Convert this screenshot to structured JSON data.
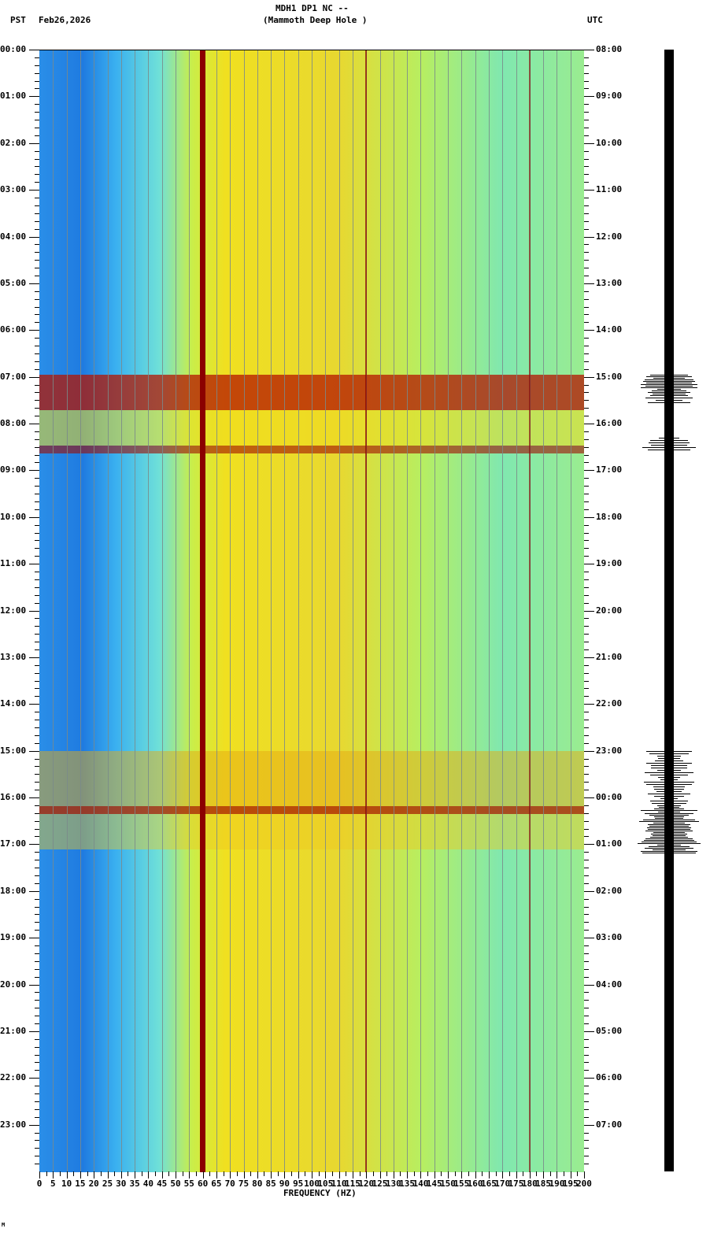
{
  "header": {
    "title_line1": "MDH1 DP1 NC --",
    "title_line2": "(Mammoth Deep Hole )",
    "left_tz": "PST",
    "date": "Feb26,2026",
    "right_tz": "UTC"
  },
  "footer": {
    "xlabel": "FREQUENCY (HZ)",
    "logo_mark": "M"
  },
  "colors": {
    "background_low": "#1f7be0",
    "mid": "#6fe0d8",
    "high": "#f0e020",
    "peak": "#8b0000",
    "gridline": "#7a8a8a",
    "seismogram": "#000000"
  },
  "chart_data": {
    "type": "heatmap",
    "title": "MDH1 DP1 NC -- (Mammoth Deep Hole )",
    "subtitle": "Feb26,2026",
    "xlabel": "FREQUENCY (HZ)",
    "ylabel_left": "PST",
    "ylabel_right": "UTC",
    "xlim": [
      0,
      200
    ],
    "x_ticks": [
      0,
      5,
      10,
      15,
      20,
      25,
      30,
      35,
      40,
      45,
      50,
      55,
      60,
      65,
      70,
      75,
      80,
      85,
      90,
      95,
      100,
      105,
      110,
      115,
      120,
      125,
      130,
      135,
      140,
      145,
      150,
      155,
      160,
      165,
      170,
      175,
      180,
      185,
      190,
      195,
      200
    ],
    "y_ticks_left": [
      "00:00",
      "01:00",
      "02:00",
      "03:00",
      "04:00",
      "05:00",
      "06:00",
      "07:00",
      "08:00",
      "09:00",
      "10:00",
      "11:00",
      "12:00",
      "13:00",
      "14:00",
      "15:00",
      "16:00",
      "17:00",
      "18:00",
      "19:00",
      "20:00",
      "21:00",
      "22:00",
      "23:00"
    ],
    "y_ticks_right": [
      "08:00",
      "09:00",
      "10:00",
      "11:00",
      "12:00",
      "13:00",
      "14:00",
      "15:00",
      "16:00",
      "17:00",
      "18:00",
      "19:00",
      "20:00",
      "21:00",
      "22:00",
      "23:00",
      "00:00",
      "01:00",
      "02:00",
      "03:00",
      "04:00",
      "05:00",
      "06:00",
      "07:00"
    ],
    "grid": true,
    "persistent_lines_hz": [
      60,
      120,
      180
    ],
    "high_energy_periods_pst": [
      "07:00-08:40",
      "15:00-16:30",
      "16:30-17:10"
    ],
    "seismogram_bursts_pst": [
      "07:00-07:30",
      "08:20-08:40",
      "15:00-16:10",
      "16:20-17:10"
    ]
  }
}
